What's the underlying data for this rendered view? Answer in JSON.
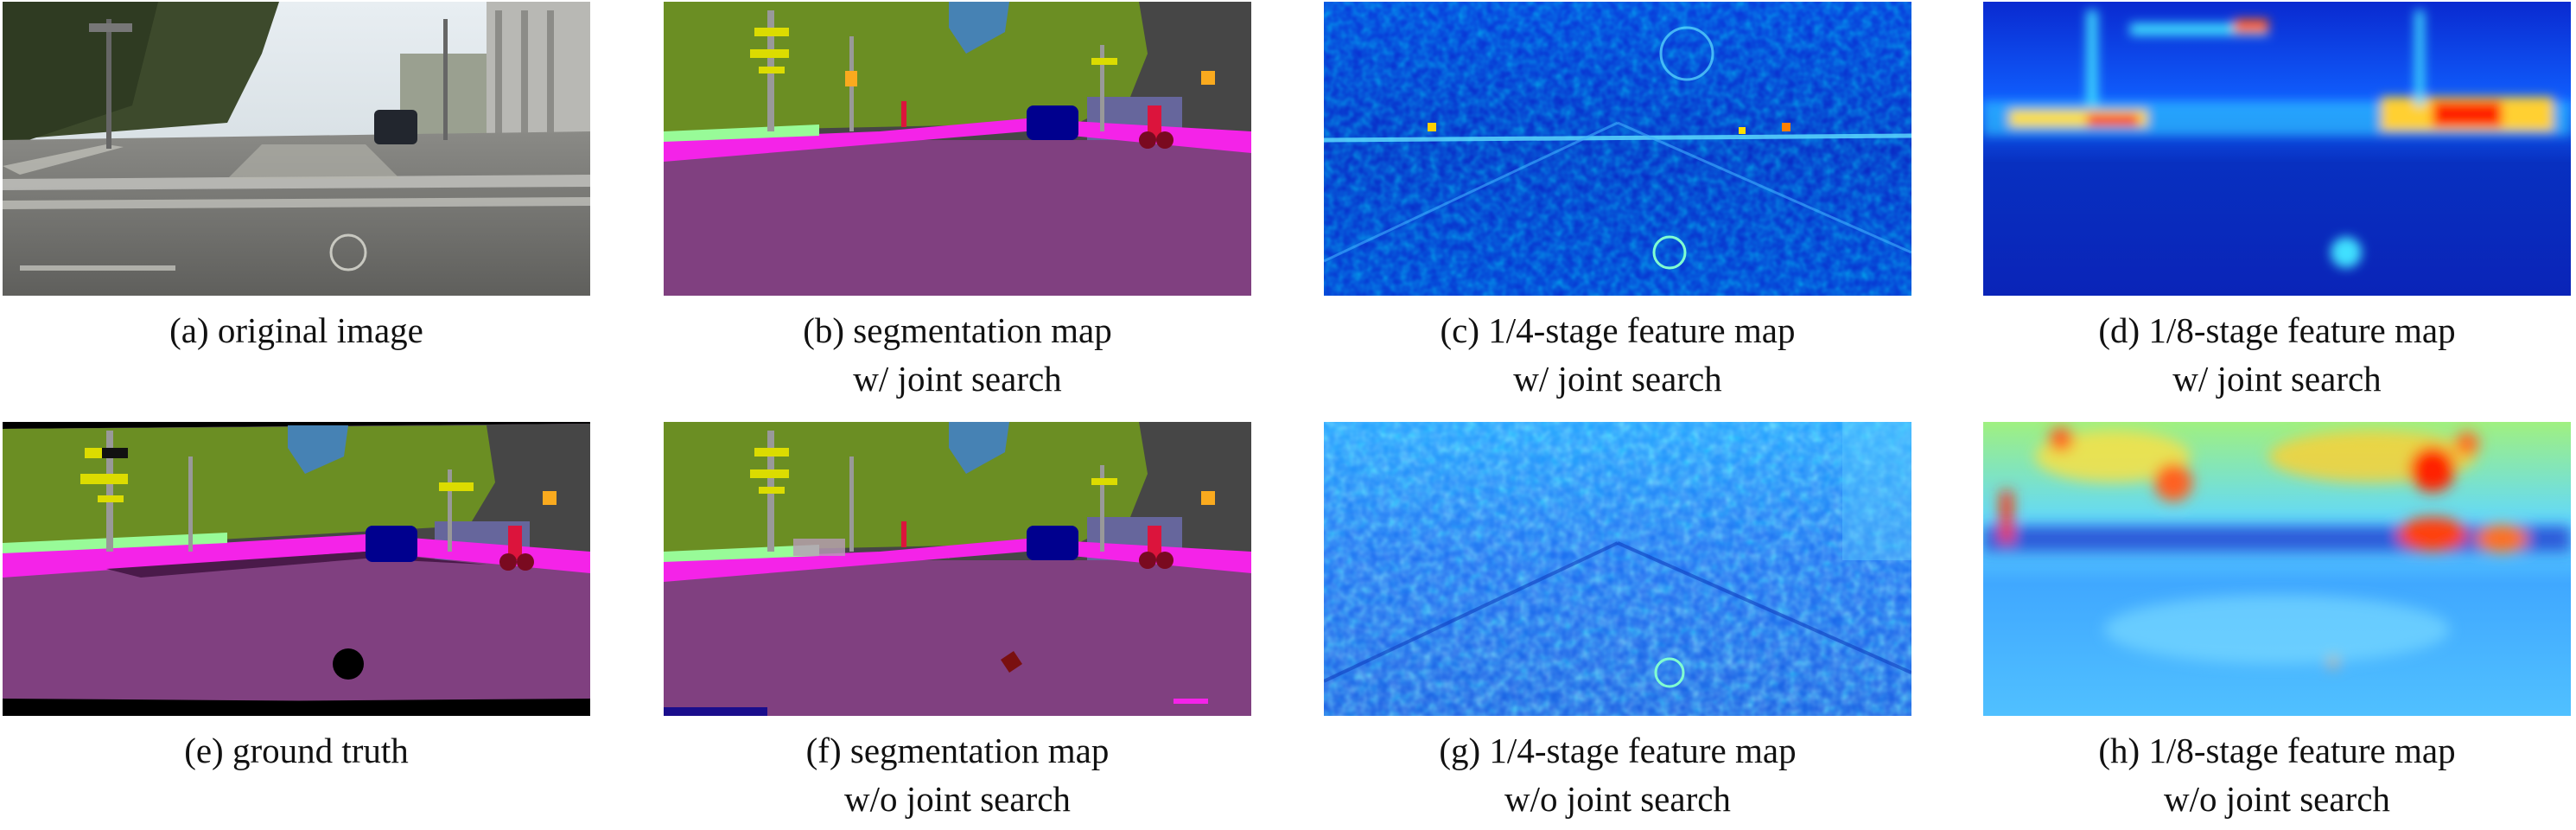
{
  "figure": {
    "panels": [
      {
        "id": "a",
        "line1": "(a) original image",
        "line2": "",
        "kind": "photo"
      },
      {
        "id": "b",
        "line1": "(b) segmentation map",
        "line2": "w/ joint search",
        "kind": "segmentation"
      },
      {
        "id": "c",
        "line1": "(c) 1/4-stage feature map",
        "line2": "w/ joint search",
        "kind": "heatmap-fine"
      },
      {
        "id": "d",
        "line1": "(d) 1/8-stage feature map",
        "line2": "w/ joint search",
        "kind": "heatmap-coarse"
      },
      {
        "id": "e",
        "line1": "(e) ground truth",
        "line2": "",
        "kind": "segmentation-gt"
      },
      {
        "id": "f",
        "line1": "(f) segmentation map",
        "line2": "w/o joint search",
        "kind": "segmentation-noisy"
      },
      {
        "id": "g",
        "line1": "(g) 1/4-stage feature map",
        "line2": "w/o joint search",
        "kind": "heatmap-fine-light"
      },
      {
        "id": "h",
        "line1": "(h) 1/8-stage feature map",
        "line2": "w/o joint search",
        "kind": "heatmap-coarse-warm"
      }
    ],
    "colors": {
      "road": "#804080",
      "sidewalk": "#f423e8",
      "vegetation": "#6b8e23",
      "sky": "#4682b4",
      "building": "#464646",
      "car": "#00008e",
      "person": "#dc143c",
      "pole": "#999999",
      "traffic_sign": "#dcdc00",
      "traffic_light": "#faaa1e",
      "wall": "#66669c",
      "terrain": "#98fb98",
      "void": "#000000",
      "jet_low": "#0010c8",
      "jet_mid": "#00c8ff",
      "jet_high": "#ff2000"
    }
  }
}
